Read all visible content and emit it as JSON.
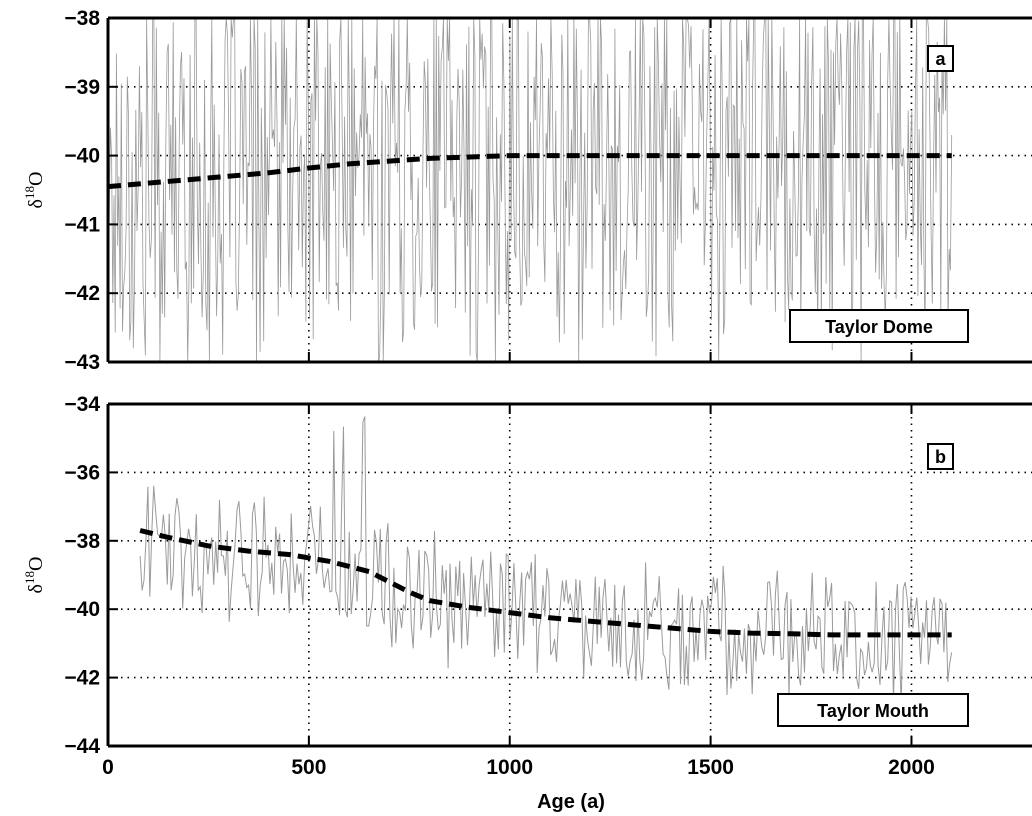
{
  "chart_data": [
    {
      "panel": "a",
      "type": "line",
      "location_label": "Taylor Dome",
      "xlabel": "",
      "ylabel": "δ ¹⁸O",
      "ylabel_main": "δ",
      "ylabel_sup": "18",
      "ylabel_sub": "O",
      "xlim": [
        0,
        2300
      ],
      "ylim": [
        -43,
        -38
      ],
      "xticks": [
        0,
        500,
        1000,
        1500,
        2000
      ],
      "yticks": [
        -43,
        -42,
        -41,
        -40,
        -39,
        -38
      ],
      "ytick_labels": [
        "−43",
        "−42",
        "−41",
        "−40",
        "−39",
        "−38"
      ],
      "grid": true,
      "series": [
        {
          "style": "dashed",
          "color": "#000000",
          "x": [
            0,
            100,
            200,
            300,
            400,
            500,
            600,
            700,
            800,
            900,
            1000,
            1100,
            1200,
            1300,
            1400,
            1500,
            1600,
            1700,
            1800,
            1900,
            2000,
            2100
          ],
          "y": [
            -40.45,
            -40.4,
            -40.35,
            -40.3,
            -40.25,
            -40.18,
            -40.12,
            -40.08,
            -40.04,
            -40.02,
            -40.0,
            -40.0,
            -40.0,
            -40.0,
            -40.0,
            -40.0,
            -40.0,
            -40.0,
            -40.0,
            -40.0,
            -40.0,
            -40.0
          ]
        },
        {
          "style": "solid-thin",
          "color": "#9a9a9a",
          "x_range": [
            0,
            2100
          ],
          "points": 700,
          "y_range": [
            -43,
            -38
          ],
          "note_visible": ""
        }
      ]
    },
    {
      "panel": "b",
      "type": "line",
      "location_label": "Taylor Mouth",
      "xlabel": "Age (a)",
      "ylabel": "δ ¹⁸O",
      "ylabel_main": "δ",
      "ylabel_sup": "18",
      "ylabel_sub": "O",
      "xlim": [
        0,
        2300
      ],
      "ylim": [
        -44,
        -34
      ],
      "xticks": [
        0,
        500,
        1000,
        1500,
        2000
      ],
      "xtick_labels": [
        "0",
        "500",
        "1000",
        "1500",
        "2000"
      ],
      "yticks": [
        -44,
        -42,
        -40,
        -38,
        -36,
        -34
      ],
      "ytick_labels": [
        "−44",
        "−42",
        "−40",
        "−38",
        "−36",
        "−34"
      ],
      "grid": true,
      "series": [
        {
          "style": "dashed",
          "color": "#000000",
          "x": [
            80,
            150,
            250,
            350,
            450,
            550,
            650,
            700,
            750,
            800,
            900,
            1000,
            1100,
            1200,
            1300,
            1400,
            1500,
            1600,
            1700,
            1800,
            1900,
            2000,
            2100
          ],
          "y": [
            -37.7,
            -37.9,
            -38.15,
            -38.3,
            -38.4,
            -38.6,
            -38.9,
            -39.2,
            -39.5,
            -39.75,
            -39.95,
            -40.1,
            -40.25,
            -40.35,
            -40.45,
            -40.55,
            -40.65,
            -40.7,
            -40.72,
            -40.75,
            -40.75,
            -40.75,
            -40.75
          ]
        },
        {
          "style": "solid-thin",
          "color": "#9a9a9a",
          "x_range": [
            80,
            2100
          ],
          "points": 420,
          "y_range": [
            -43.5,
            -34
          ]
        }
      ]
    }
  ]
}
